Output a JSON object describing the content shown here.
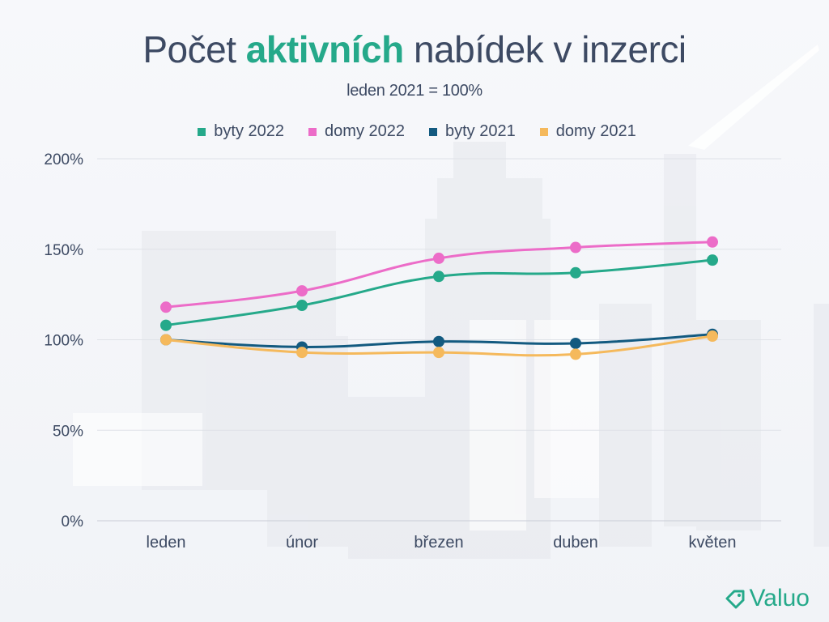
{
  "title": {
    "part1": "Počet ",
    "accent": "aktivních",
    "part2": " nabídek v inzerci"
  },
  "subtitle": "leden 2021 = 100%",
  "colors": {
    "accent": "#25a98a",
    "text": "#3d4a63",
    "grid": "#dfe2e8"
  },
  "logo": {
    "text": "Valuo",
    "icon": "price-tag-icon"
  },
  "chart_data": {
    "type": "line",
    "categories": [
      "leden",
      "únor",
      "březen",
      "duben",
      "květen"
    ],
    "ylim": [
      0,
      200
    ],
    "yticks": [
      0,
      50,
      100,
      150,
      200
    ],
    "ytick_labels": [
      "0%",
      "50%",
      "100%",
      "150%",
      "200%"
    ],
    "grid": true,
    "legend_position": "top",
    "series": [
      {
        "name": "byty 2022",
        "color": "#25a98a",
        "values": [
          108,
          119,
          135,
          137,
          144
        ]
      },
      {
        "name": "domy 2022",
        "color": "#ec6cc8",
        "values": [
          118,
          127,
          145,
          151,
          154
        ]
      },
      {
        "name": "byty 2021",
        "color": "#135a80",
        "values": [
          100,
          96,
          99,
          98,
          103
        ]
      },
      {
        "name": "domy 2021",
        "color": "#f5b95c",
        "values": [
          100,
          93,
          93,
          92,
          102
        ]
      }
    ]
  }
}
